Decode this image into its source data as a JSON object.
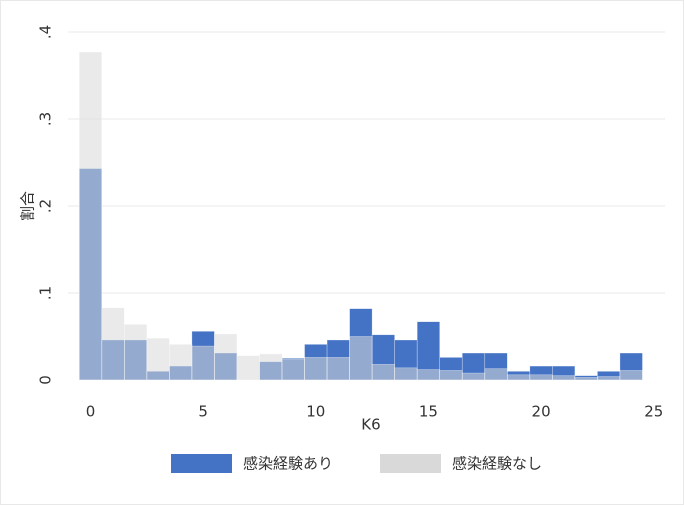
{
  "chart_data": {
    "type": "histogram",
    "x_label": "K6",
    "y_label": "割合",
    "bins": [
      -0.5,
      0.5,
      1.5,
      2.5,
      3.5,
      4.5,
      5.5,
      6.5,
      7.5,
      8.5,
      9.5,
      10.5,
      11.5,
      12.5,
      13.5,
      14.5,
      15.5,
      16.5,
      17.5,
      18.5,
      19.5,
      20.5,
      21.5,
      22.5,
      23.5,
      24.5
    ],
    "series": [
      {
        "name": "感染経験あり",
        "color": "#4472c4",
        "values": [
          0.243,
          0.046,
          0.046,
          0.01,
          0.016,
          0.056,
          0.031,
          0,
          0.021,
          0.025,
          0.041,
          0.046,
          0.082,
          0.052,
          0.046,
          0.067,
          0.026,
          0.031,
          0.031,
          0.01,
          0.016,
          0.016,
          0.005,
          0.01,
          0.031
        ]
      },
      {
        "name": "感染経験なし",
        "color": "#d9d9d9",
        "values": [
          0.377,
          0.083,
          0.064,
          0.048,
          0.041,
          0.039,
          0.053,
          0.028,
          0.03,
          0.024,
          0.026,
          0.026,
          0.05,
          0.018,
          0.014,
          0.012,
          0.011,
          0.008,
          0.013,
          0.006,
          0.006,
          0.005,
          0.003,
          0.004,
          0.011
        ]
      }
    ],
    "xlim": [
      -1,
      25.5
    ],
    "xticks": [
      0,
      5,
      10,
      15,
      20,
      25
    ],
    "ylim": [
      0,
      0.4
    ],
    "yticks": [
      0,
      {
        "value": 0.1,
        "label": ".1"
      },
      {
        "value": 0.2,
        "label": ".2"
      },
      {
        "value": 0.3,
        "label": ".3"
      },
      {
        "value": 0.4,
        "label": ".4"
      }
    ],
    "grid": true,
    "legend": "bottom"
  }
}
